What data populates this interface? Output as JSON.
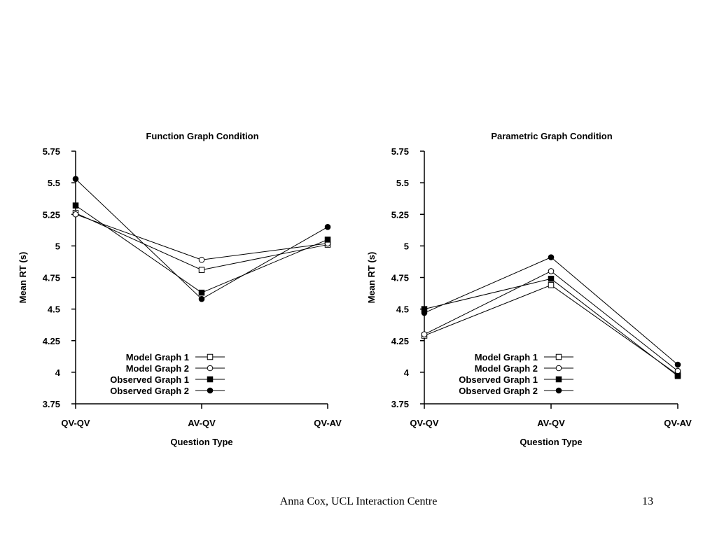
{
  "chart_data": [
    {
      "type": "line",
      "title": "Function Graph Condition",
      "xlabel": "Question Type",
      "ylabel": "Mean RT (s)",
      "categories": [
        "QV-QV",
        "AV-QV",
        "QV-AV"
      ],
      "ylim": [
        3.75,
        5.75
      ],
      "yticks": [
        3.75,
        4,
        4.25,
        4.5,
        4.75,
        5,
        5.25,
        5.5,
        5.75
      ],
      "ytick_labels": [
        "3.75",
        "4",
        "4.25",
        "4.5",
        "4.75",
        "5",
        "5.25",
        "5.5",
        "5.75"
      ],
      "grid": false,
      "legend_position": "bottom-right",
      "series": [
        {
          "name": "Model Graph 1",
          "marker": "open-square",
          "values": [
            5.26,
            4.81,
            5.01
          ]
        },
        {
          "name": "Model Graph 2",
          "marker": "open-circle",
          "values": [
            5.25,
            4.89,
            5.02
          ]
        },
        {
          "name": "Observed Graph 1",
          "marker": "filled-square",
          "values": [
            5.32,
            4.63,
            5.05
          ]
        },
        {
          "name": "Observed Graph 2",
          "marker": "filled-circle",
          "values": [
            5.53,
            4.58,
            5.15
          ]
        }
      ]
    },
    {
      "type": "line",
      "title": "Parametric Graph Condition",
      "xlabel": "Question Type",
      "ylabel": "Mean RT (s)",
      "categories": [
        "QV-QV",
        "AV-QV",
        "QV-AV"
      ],
      "ylim": [
        3.75,
        5.75
      ],
      "yticks": [
        3.75,
        4,
        4.25,
        4.5,
        4.75,
        5,
        5.25,
        5.5,
        5.75
      ],
      "ytick_labels": [
        "3.75",
        "4",
        "4.25",
        "4.5",
        "4.75",
        "5",
        "5.25",
        "5.5",
        "5.75"
      ],
      "grid": false,
      "legend_position": "bottom-right",
      "series": [
        {
          "name": "Model Graph 1",
          "marker": "open-square",
          "values": [
            4.29,
            4.69,
            3.98
          ]
        },
        {
          "name": "Model Graph 2",
          "marker": "open-circle",
          "values": [
            4.3,
            4.8,
            4.01
          ]
        },
        {
          "name": "Observed Graph 1",
          "marker": "filled-square",
          "values": [
            4.5,
            4.74,
            3.97
          ]
        },
        {
          "name": "Observed Graph 2",
          "marker": "filled-circle",
          "values": [
            4.47,
            4.91,
            4.06
          ]
        }
      ]
    }
  ],
  "footer": {
    "text": "Anna Cox, UCL Interaction Centre",
    "page_number": "13"
  }
}
